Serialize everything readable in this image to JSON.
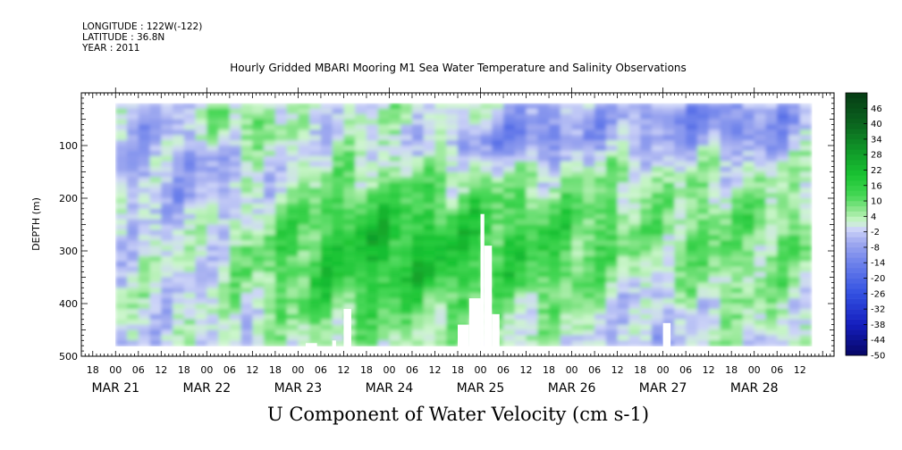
{
  "header": {
    "longitude": "LONGITUDE : 122W(-122)",
    "latitude": "LATITUDE : 36.8N",
    "year": "YEAR : 2011"
  },
  "title": "Hourly Gridded MBARI Mooring M1 Sea Water Temperature and Salinity Observations",
  "variable_title": "U Component of Water Velocity (cm s-1)",
  "chart_data": {
    "type": "heatmap",
    "title": "Hourly Gridded MBARI Mooring M1 Sea Water Temperature and Salinity Observations",
    "xlabel": "",
    "ylabel": "DEPTH (m)",
    "colorbar_label": "U Component of Water Velocity (cm s-1)",
    "x_range": [
      "2011-03-20T15:00",
      "2011-03-28T21:00"
    ],
    "data_x_range": [
      "2011-03-21T00:00",
      "2011-03-28T15:00"
    ],
    "y_range": [
      500,
      0
    ],
    "y_reversed": true,
    "y_ticks": [
      100,
      200,
      300,
      400,
      500
    ],
    "y_tick_labels": [
      "100",
      "200",
      "300",
      "400",
      "500"
    ],
    "x_hour_ticks": [
      "18",
      "00",
      "06",
      "12",
      "18",
      "00",
      "06",
      "12",
      "18",
      "00",
      "06",
      "12",
      "18",
      "00",
      "06",
      "12",
      "18",
      "00",
      "06",
      "12",
      "18",
      "00",
      "06",
      "12",
      "18",
      "00",
      "06",
      "12",
      "18",
      "00",
      "06",
      "12"
    ],
    "x_date_labels": [
      {
        "label": "MAR 21",
        "at": "2011-03-21T00:00"
      },
      {
        "label": "MAR 22",
        "at": "2011-03-22T00:00"
      },
      {
        "label": "MAR 23",
        "at": "2011-03-23T00:00"
      },
      {
        "label": "MAR 24",
        "at": "2011-03-24T00:00"
      },
      {
        "label": "MAR 25",
        "at": "2011-03-25T00:00"
      },
      {
        "label": "MAR 26",
        "at": "2011-03-26T00:00"
      },
      {
        "label": "MAR 27",
        "at": "2011-03-27T00:00"
      },
      {
        "label": "MAR 28",
        "at": "2011-03-28T00:00"
      }
    ],
    "colorbar_levels": [
      46,
      40,
      34,
      28,
      22,
      16,
      10,
      4,
      -2,
      -8,
      -14,
      -20,
      -26,
      -32,
      -38,
      -44,
      -50
    ],
    "colorbar_range": [
      -50,
      52
    ],
    "colors": {
      "strong_negative": "#0a0a78",
      "negative": "#3a55e6",
      "weak_negative": "#aab4ee",
      "weak_positive": "#a8eab0",
      "positive": "#22cc44",
      "strong_positive": "#0a5a1a"
    },
    "velocity_structure": [
      {
        "time_range": [
          "2011-03-21T00:00",
          "2011-03-22T12:00"
        ],
        "depth_range": [
          20,
          480
        ],
        "level": "weak negative to weak positive"
      },
      {
        "time_range": [
          "2011-03-22T18:00",
          "2011-03-24T00:00"
        ],
        "depth_range": [
          150,
          480
        ],
        "level": "positive"
      },
      {
        "time_range": [
          "2011-03-24T00:00",
          "2011-03-26T12:00"
        ],
        "depth_range": [
          180,
          380
        ],
        "level": "positive, core near 16"
      },
      {
        "time_range": [
          "2011-03-24T18:00",
          "2011-03-25T06:00"
        ],
        "depth_range": [
          20,
          100
        ],
        "level": "negative"
      },
      {
        "time_range": [
          "2011-03-26T18:00",
          "2011-03-27T06:00"
        ],
        "depth_range": [
          250,
          480
        ],
        "level": "weak negative"
      }
    ],
    "missing_data_bars": [
      {
        "time_range": [
          "2011-03-23T02:00",
          "2011-03-23T05:00"
        ],
        "depth_range": [
          475,
          480
        ]
      },
      {
        "time_range": [
          "2011-03-23T09:00",
          "2011-03-23T10:00"
        ],
        "depth_range": [
          470,
          480
        ]
      },
      {
        "time_range": [
          "2011-03-23T12:00",
          "2011-03-23T14:00"
        ],
        "depth_range": [
          410,
          480
        ]
      },
      {
        "time_range": [
          "2011-03-24T18:00",
          "2011-03-24T21:00"
        ],
        "depth_range": [
          440,
          480
        ]
      },
      {
        "time_range": [
          "2011-03-24T21:00",
          "2011-03-25T00:00"
        ],
        "depth_range": [
          390,
          480
        ]
      },
      {
        "time_range": [
          "2011-03-25T00:00",
          "2011-03-25T01:00"
        ],
        "depth_range": [
          230,
          480
        ]
      },
      {
        "time_range": [
          "2011-03-25T01:00",
          "2011-03-25T03:00"
        ],
        "depth_range": [
          290,
          480
        ]
      },
      {
        "time_range": [
          "2011-03-25T03:00",
          "2011-03-25T05:00"
        ],
        "depth_range": [
          420,
          480
        ]
      },
      {
        "time_range": [
          "2011-03-27T00:00",
          "2011-03-27T02:00"
        ],
        "depth_range": [
          437,
          480
        ]
      }
    ]
  }
}
